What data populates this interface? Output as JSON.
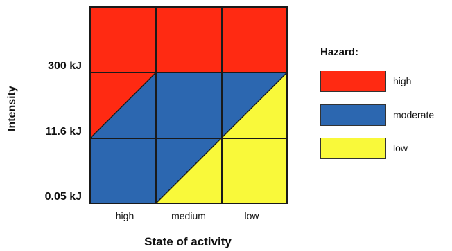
{
  "chart_data": {
    "type": "heatmap",
    "title": "",
    "xlabel": "State of activity",
    "ylabel": "Intensity",
    "x_categories": [
      "high",
      "medium",
      "low"
    ],
    "y_boundaries": [
      "300 kJ",
      "11.6 kJ",
      "0.05 kJ"
    ],
    "zones": [
      {
        "name": "high",
        "color": "#ff2a12"
      },
      {
        "name": "moderate",
        "color": "#2c67b0"
      },
      {
        "name": "low",
        "color": "#f9f93a"
      }
    ]
  },
  "legend": {
    "title": "Hazard:",
    "items": [
      {
        "label": "high",
        "color": "#ff2a12"
      },
      {
        "label": "moderate",
        "color": "#2c67b0"
      },
      {
        "label": "low",
        "color": "#f9f93a"
      }
    ]
  }
}
